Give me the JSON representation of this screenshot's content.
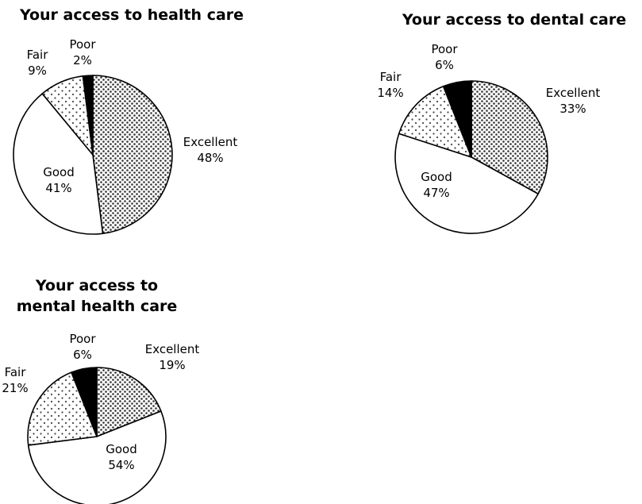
{
  "chart_data": [
    {
      "type": "pie",
      "title": "Your access to health care",
      "slices": [
        {
          "label": "Excellent",
          "value": 48,
          "text": "48%"
        },
        {
          "label": "Good",
          "value": 41,
          "text": "41%"
        },
        {
          "label": "Fair",
          "value": 9,
          "text": "9%"
        },
        {
          "label": "Poor",
          "value": 2,
          "text": "2%"
        }
      ]
    },
    {
      "type": "pie",
      "title": "Your access to dental care",
      "slices": [
        {
          "label": "Excellent",
          "value": 33,
          "text": "33%"
        },
        {
          "label": "Good",
          "value": 47,
          "text": "47%"
        },
        {
          "label": "Fair",
          "value": 14,
          "text": "14%"
        },
        {
          "label": "Poor",
          "value": 6,
          "text": "6%"
        }
      ]
    },
    {
      "type": "pie",
      "title": [
        "Your access to",
        "mental health care"
      ],
      "slices": [
        {
          "label": "Excellent",
          "value": 19,
          "text": "19%"
        },
        {
          "label": "Good",
          "value": 54,
          "text": "54%"
        },
        {
          "label": "Fair",
          "value": 21,
          "text": "21%"
        },
        {
          "label": "Poor",
          "value": 6,
          "text": "6%"
        }
      ]
    }
  ]
}
